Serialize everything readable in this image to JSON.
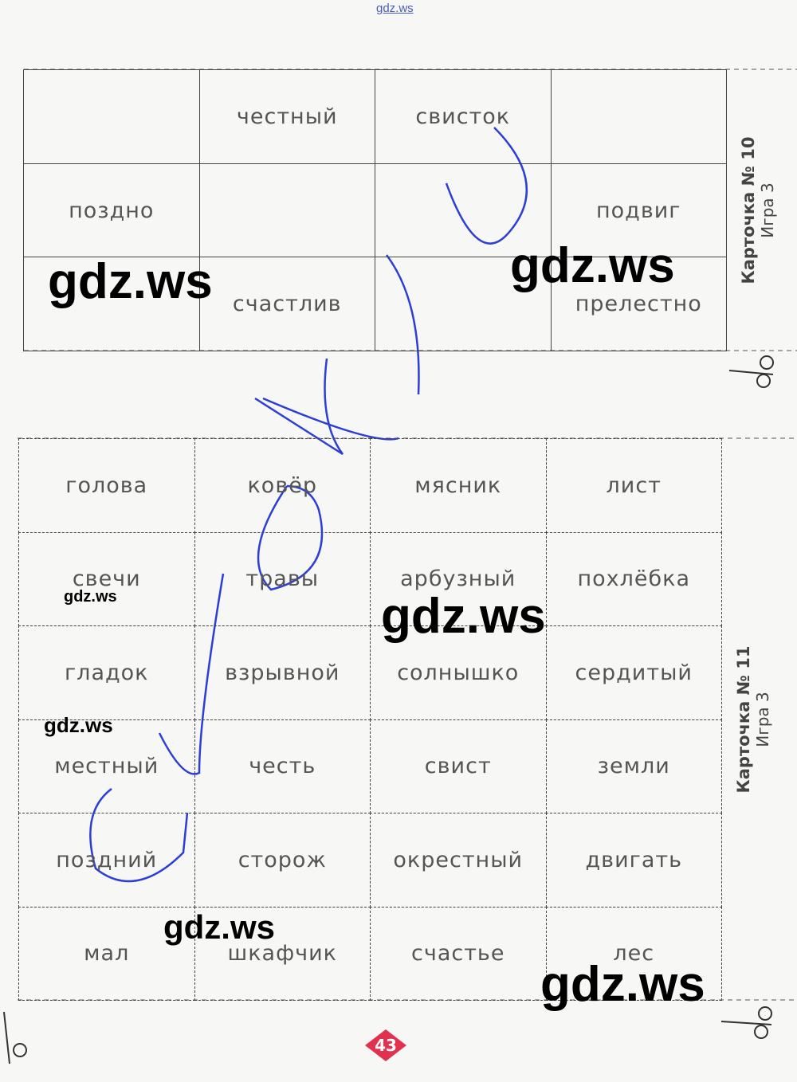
{
  "header": {
    "site": "gdz.ws"
  },
  "card10": {
    "title": "Карточка № 10",
    "subtitle": "Игра 3",
    "rows": [
      [
        null,
        "честный",
        "свисток",
        null
      ],
      [
        "поздно",
        null,
        null,
        "подвиг"
      ],
      [
        null,
        "счастлив",
        null,
        "прелестно"
      ]
    ]
  },
  "card11": {
    "title": "Карточка № 11",
    "subtitle": "Игра 3",
    "rows": [
      [
        "голова",
        "ковёр",
        "мясник",
        "лист"
      ],
      [
        "свечи",
        "травы",
        "арбузный",
        "похлёбка"
      ],
      [
        "гладок",
        "взрывной",
        "солнышко",
        "сердитый"
      ],
      [
        "местный",
        "честь",
        "свист",
        "земли"
      ],
      [
        "поздний",
        "сторож",
        "окрестный",
        "двигать"
      ],
      [
        "мал",
        "шкафчик",
        "счастье",
        "лес"
      ]
    ]
  },
  "watermarks": [
    "gdz.ws",
    "gdz.ws",
    "gdz.ws",
    "gdz.ws",
    "gdz.ws",
    "gdz.ws",
    "gdz.ws"
  ],
  "page_number": "43"
}
